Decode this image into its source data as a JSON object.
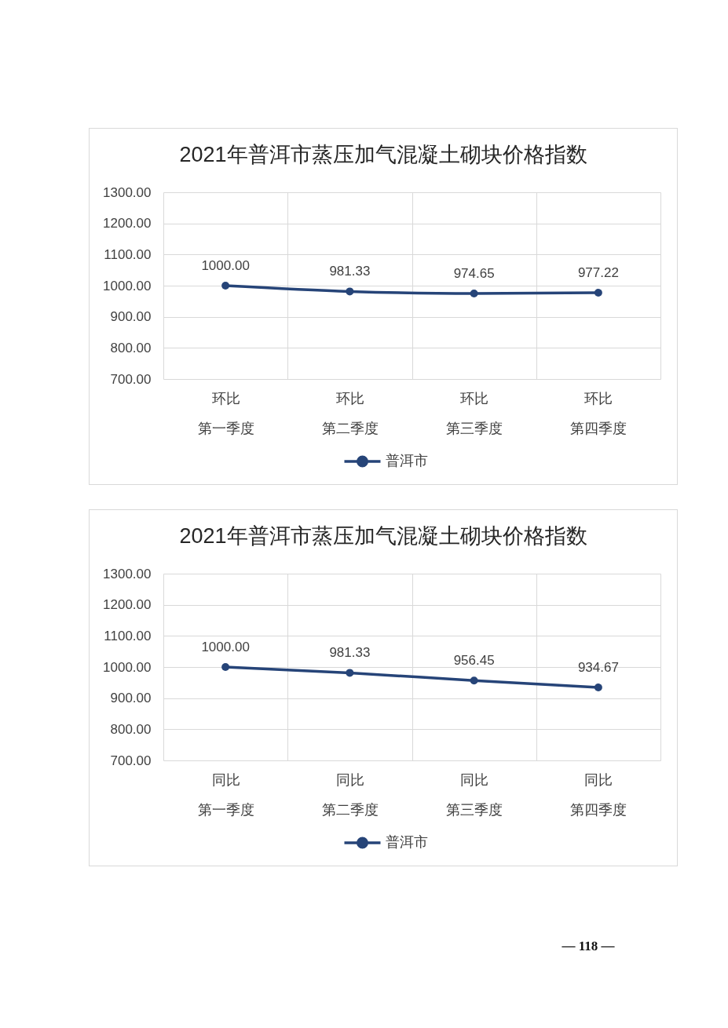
{
  "chart_data": [
    {
      "type": "line",
      "title": "2021年普洱市蒸压加气混凝土砌块价格指数",
      "categories": [
        "环比第一季度",
        "环比第二季度",
        "环比第三季度",
        "环比第四季度"
      ],
      "series": [
        {
          "name": "普洱市",
          "color": "#264478",
          "values": [
            1000,
            981.33,
            974.65,
            977.22
          ],
          "value_labels": [
            "1000.00",
            "981.33",
            "974.65",
            "977.22"
          ]
        }
      ],
      "ylim": [
        700,
        1300
      ],
      "yticks": [
        {
          "value": 700,
          "label": "700.00"
        },
        {
          "value": 800,
          "label": "800.00"
        },
        {
          "value": 900,
          "label": "900.00"
        },
        {
          "value": 1000,
          "label": "1000.00"
        },
        {
          "value": 1100,
          "label": "1100.00"
        },
        {
          "value": 1200,
          "label": "1200.00"
        },
        {
          "value": 1300,
          "label": "1300.00"
        }
      ],
      "grid": true,
      "legend": "bottom",
      "marker": "circle",
      "line_style": "solid"
    },
    {
      "type": "line",
      "title": "2021年普洱市蒸压加气混凝土砌块价格指数",
      "categories": [
        "同比第一季度",
        "同比第二季度",
        "同比第三季度",
        "同比第四季度"
      ],
      "series": [
        {
          "name": "普洱市",
          "color": "#264478",
          "values": [
            1000,
            981.33,
            956.45,
            934.67
          ],
          "value_labels": [
            "1000.00",
            "981.33",
            "956.45",
            "934.67"
          ]
        }
      ],
      "ylim": [
        700,
        1300
      ],
      "yticks": [
        {
          "value": 700,
          "label": "700.00"
        },
        {
          "value": 800,
          "label": "800.00"
        },
        {
          "value": 900,
          "label": "900.00"
        },
        {
          "value": 1000,
          "label": "1000.00"
        },
        {
          "value": 1100,
          "label": "1100.00"
        },
        {
          "value": 1200,
          "label": "1200.00"
        },
        {
          "value": 1300,
          "label": "1300.00"
        }
      ],
      "grid": true,
      "legend": "bottom",
      "marker": "circle",
      "line_style": "solid",
      "annotations": [
        "— 118 —"
      ]
    }
  ]
}
